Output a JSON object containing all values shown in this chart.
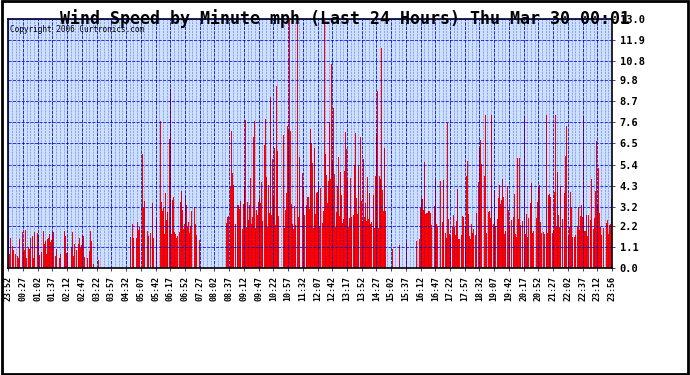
{
  "title": "Wind Speed by Minute mph (Last 24 Hours) Thu Mar 30 00:01",
  "copyright": "Copyright 2006 Curtronics.com",
  "yticks": [
    0.0,
    1.1,
    2.2,
    3.2,
    4.3,
    5.4,
    6.5,
    7.6,
    8.7,
    9.8,
    10.8,
    11.9,
    13.0
  ],
  "ylim": [
    0.0,
    13.0
  ],
  "bar_color": "#ff0000",
  "grid_color": "#0000cc",
  "background_color": "#ffffff",
  "plot_bg_color": "#cce0ff",
  "title_fontsize": 12,
  "x_labels": [
    "23:52",
    "00:27",
    "01:02",
    "01:37",
    "02:12",
    "02:47",
    "03:22",
    "03:57",
    "04:32",
    "05:07",
    "05:42",
    "06:17",
    "06:52",
    "07:27",
    "08:02",
    "08:37",
    "09:12",
    "09:47",
    "10:22",
    "10:57",
    "11:32",
    "12:07",
    "12:42",
    "13:17",
    "13:52",
    "14:27",
    "15:02",
    "15:37",
    "16:12",
    "16:47",
    "17:22",
    "17:57",
    "18:32",
    "19:07",
    "19:42",
    "20:17",
    "20:52",
    "21:27",
    "22:02",
    "22:37",
    "23:12",
    "23:56"
  ],
  "n_bars": 1440,
  "seed": 42
}
